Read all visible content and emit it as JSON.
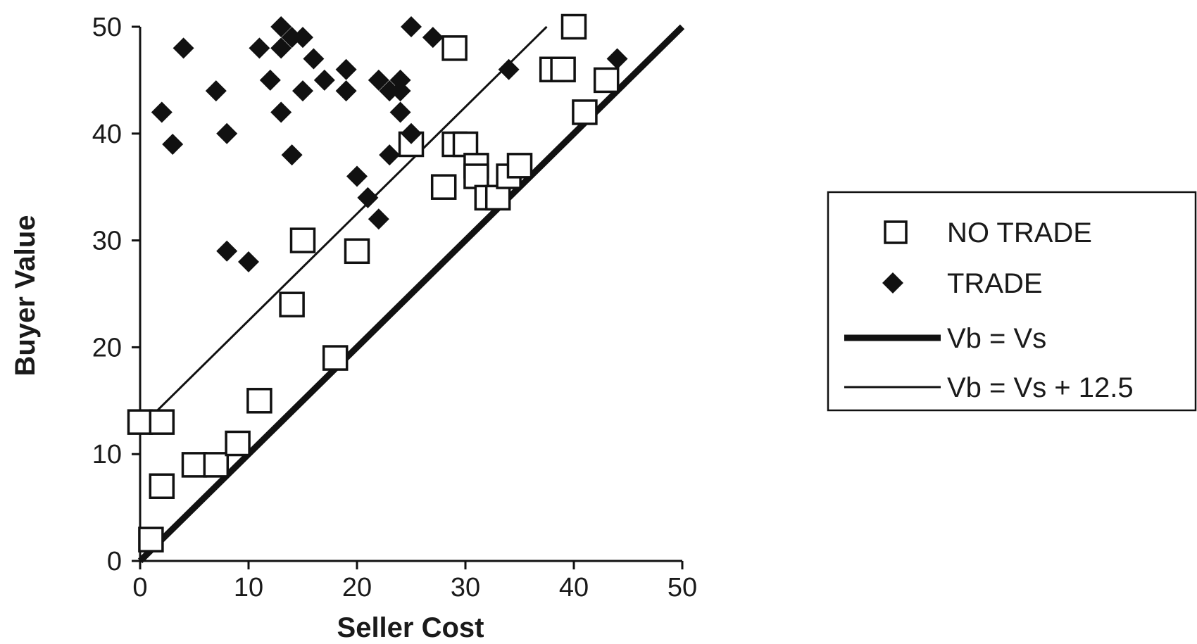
{
  "chart_data": {
    "type": "scatter",
    "xlabel": "Seller Cost",
    "ylabel": "Buyer Value",
    "xlim": [
      0,
      50
    ],
    "ylim": [
      0,
      50
    ],
    "xticks": [
      0,
      10,
      20,
      30,
      40,
      50
    ],
    "yticks": [
      0,
      10,
      20,
      30,
      40,
      50
    ],
    "grid": false,
    "legend_position": "right",
    "series": [
      {
        "name": "NO TRADE",
        "marker": "open-square",
        "points": [
          [
            0,
            13
          ],
          [
            2,
            13
          ],
          [
            2,
            7
          ],
          [
            1,
            2
          ],
          [
            5,
            9
          ],
          [
            7,
            9
          ],
          [
            9,
            11
          ],
          [
            11,
            15
          ],
          [
            14,
            24
          ],
          [
            15,
            30
          ],
          [
            18,
            19
          ],
          [
            20,
            29
          ],
          [
            25,
            39
          ],
          [
            28,
            35
          ],
          [
            29,
            48
          ],
          [
            29,
            39
          ],
          [
            30,
            39
          ],
          [
            31,
            37
          ],
          [
            31,
            36
          ],
          [
            32,
            34
          ],
          [
            33,
            34
          ],
          [
            34,
            36
          ],
          [
            35,
            37
          ],
          [
            38,
            46
          ],
          [
            39,
            46
          ],
          [
            40,
            50
          ],
          [
            41,
            42
          ],
          [
            43,
            45
          ]
        ]
      },
      {
        "name": "TRADE",
        "marker": "filled-diamond",
        "points": [
          [
            2,
            42
          ],
          [
            3,
            39
          ],
          [
            4,
            48
          ],
          [
            7,
            44
          ],
          [
            8,
            40
          ],
          [
            8,
            29
          ],
          [
            10,
            28
          ],
          [
            11,
            48
          ],
          [
            12,
            45
          ],
          [
            13,
            50
          ],
          [
            13,
            48
          ],
          [
            13,
            42
          ],
          [
            14,
            49
          ],
          [
            14,
            38
          ],
          [
            15,
            49
          ],
          [
            15,
            44
          ],
          [
            16,
            47
          ],
          [
            17,
            45
          ],
          [
            19,
            46
          ],
          [
            19,
            44
          ],
          [
            20,
            36
          ],
          [
            21,
            34
          ],
          [
            22,
            45
          ],
          [
            22,
            32
          ],
          [
            23,
            44
          ],
          [
            23,
            38
          ],
          [
            24,
            45
          ],
          [
            24,
            44
          ],
          [
            24,
            42
          ],
          [
            25,
            50
          ],
          [
            25,
            40
          ],
          [
            27,
            49
          ],
          [
            34,
            46
          ],
          [
            44,
            47
          ]
        ]
      }
    ],
    "lines": [
      {
        "name": "Vb = Vs",
        "from": [
          0,
          0
        ],
        "to": [
          50,
          50
        ],
        "weight": "thick"
      },
      {
        "name": "Vb = Vs + 12.5",
        "from": [
          0,
          12.5
        ],
        "to": [
          37.5,
          50
        ],
        "weight": "thin"
      }
    ],
    "colors": {
      "ink": "#111111",
      "background": "#ffffff"
    }
  }
}
